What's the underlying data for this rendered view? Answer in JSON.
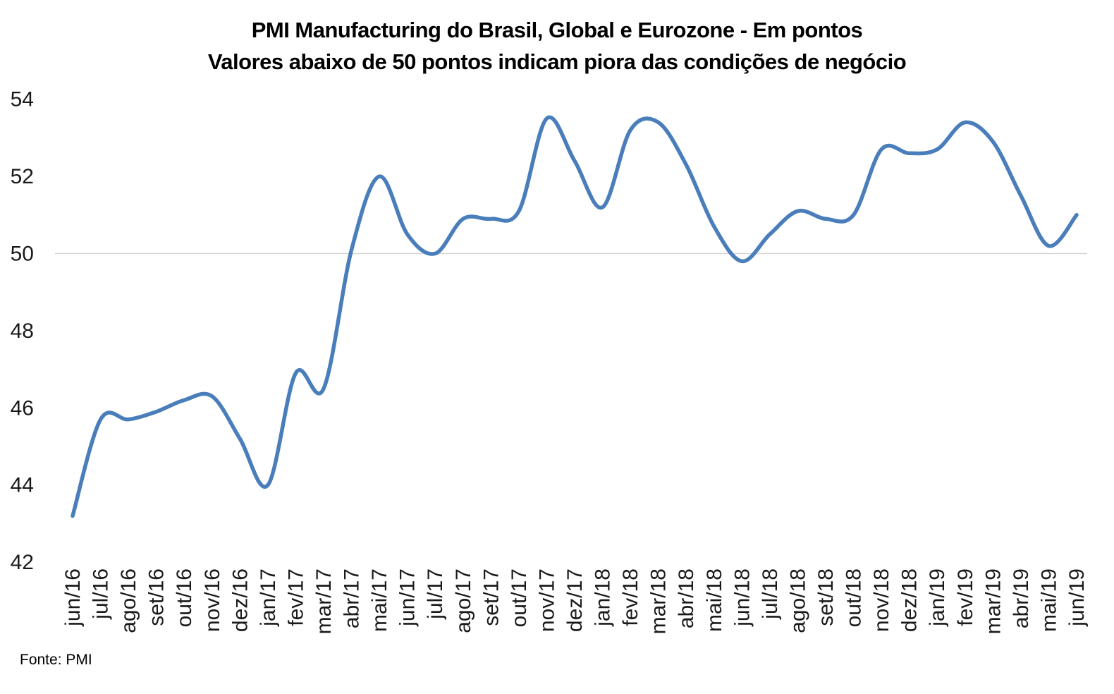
{
  "title": "PMI Manufacturing do Brasil, Global e Eurozone - Em pontos",
  "subtitle": "Valores abaixo de 50 pontos indicam piora das condições de negócio",
  "source": "Fonte: PMI",
  "colors": {
    "line": "#4A7EBB",
    "reference_gridline": "#D6D6D6",
    "text": "#000000",
    "background": "#FFFFFF"
  },
  "chart_data": {
    "type": "line",
    "title": "PMI Manufacturing do Brasil, Global e Eurozone - Em pontos",
    "subtitle": "Valores abaixo de 50 pontos indicam piora das condições de negócio",
    "categories": [
      "jun/16",
      "jul/16",
      "ago/16",
      "set/16",
      "out/16",
      "nov/16",
      "dez/16",
      "jan/17",
      "fev/17",
      "mar/17",
      "abr/17",
      "mai/17",
      "jun/17",
      "jul/17",
      "ago/17",
      "set/17",
      "out/17",
      "nov/17",
      "dez/17",
      "jan/18",
      "fev/18",
      "mar/18",
      "abr/18",
      "mai/18",
      "jun/18",
      "jul/18",
      "ago/18",
      "set/18",
      "out/18",
      "nov/18",
      "dez/18",
      "jan/19",
      "fev/19",
      "mar/19",
      "abr/19",
      "mai/19",
      "jun/19"
    ],
    "values": [
      43.2,
      45.7,
      45.7,
      45.9,
      46.2,
      46.3,
      45.2,
      44.0,
      46.9,
      46.5,
      50.1,
      52.0,
      50.5,
      50.0,
      50.9,
      50.9,
      51.1,
      53.5,
      52.4,
      51.2,
      53.2,
      53.4,
      52.3,
      50.7,
      49.8,
      50.5,
      51.1,
      50.9,
      51.0,
      52.7,
      52.6,
      52.7,
      53.4,
      52.9,
      51.5,
      50.2,
      51.0
    ],
    "xlabel": "",
    "ylabel": "",
    "ylim": [
      42,
      54
    ],
    "yticks": [
      54,
      52,
      50,
      48,
      46,
      44,
      42
    ],
    "line_style": "smooth",
    "legend": "none",
    "grid": "horizontal reference line at 50 only",
    "source": "Fonte: PMI"
  }
}
